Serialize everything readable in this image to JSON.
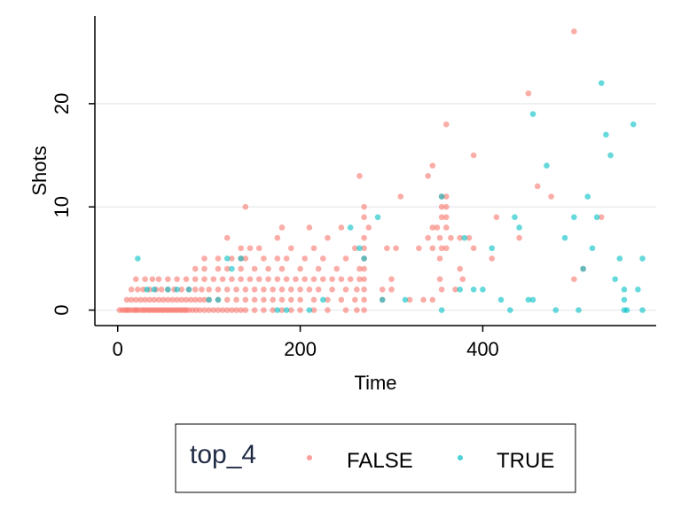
{
  "chart_data": {
    "type": "scatter",
    "xlabel": "Time",
    "ylabel": "Shots",
    "xlim": [
      -25,
      590
    ],
    "ylim": [
      -1.5,
      28.5
    ],
    "xticks": [
      0,
      200,
      400
    ],
    "yticks": [
      0,
      10,
      20
    ],
    "grid": "horizontal",
    "legend": {
      "title": "top_4",
      "placement": "bottom",
      "entries": [
        "FALSE",
        "TRUE"
      ]
    },
    "series": [
      {
        "name": "FALSE",
        "color": "#F8766D",
        "points": [
          [
            2,
            0
          ],
          [
            5,
            0
          ],
          [
            8,
            0
          ],
          [
            10,
            0
          ],
          [
            12,
            0
          ],
          [
            15,
            0
          ],
          [
            18,
            0
          ],
          [
            20,
            0
          ],
          [
            22,
            0
          ],
          [
            25,
            0
          ],
          [
            28,
            0
          ],
          [
            30,
            0
          ],
          [
            33,
            0
          ],
          [
            35,
            0
          ],
          [
            38,
            0
          ],
          [
            40,
            0
          ],
          [
            43,
            0
          ],
          [
            45,
            0
          ],
          [
            48,
            0
          ],
          [
            50,
            0
          ],
          [
            53,
            0
          ],
          [
            55,
            0
          ],
          [
            58,
            0
          ],
          [
            60,
            0
          ],
          [
            63,
            0
          ],
          [
            65,
            0
          ],
          [
            68,
            0
          ],
          [
            70,
            0
          ],
          [
            73,
            0
          ],
          [
            75,
            0
          ],
          [
            78,
            0
          ],
          [
            82,
            0
          ],
          [
            86,
            0
          ],
          [
            90,
            0
          ],
          [
            95,
            0
          ],
          [
            100,
            0
          ],
          [
            105,
            0
          ],
          [
            110,
            0
          ],
          [
            115,
            0
          ],
          [
            120,
            0
          ],
          [
            125,
            0
          ],
          [
            130,
            0
          ],
          [
            135,
            0
          ],
          [
            140,
            0
          ],
          [
            150,
            0
          ],
          [
            160,
            0
          ],
          [
            170,
            0
          ],
          [
            180,
            0
          ],
          [
            190,
            0
          ],
          [
            200,
            0
          ],
          [
            215,
            0
          ],
          [
            230,
            0
          ],
          [
            250,
            0
          ],
          [
            262,
            0
          ],
          [
            270,
            0
          ],
          [
            10,
            1
          ],
          [
            15,
            1
          ],
          [
            20,
            1
          ],
          [
            25,
            1
          ],
          [
            30,
            1
          ],
          [
            35,
            1
          ],
          [
            40,
            1
          ],
          [
            45,
            1
          ],
          [
            50,
            1
          ],
          [
            55,
            1
          ],
          [
            60,
            1
          ],
          [
            65,
            1
          ],
          [
            70,
            1
          ],
          [
            75,
            1
          ],
          [
            80,
            1
          ],
          [
            85,
            1
          ],
          [
            90,
            1
          ],
          [
            95,
            1
          ],
          [
            100,
            1
          ],
          [
            110,
            1
          ],
          [
            120,
            1
          ],
          [
            130,
            1
          ],
          [
            140,
            1
          ],
          [
            150,
            1
          ],
          [
            160,
            1
          ],
          [
            170,
            1
          ],
          [
            180,
            1
          ],
          [
            190,
            1
          ],
          [
            200,
            1
          ],
          [
            215,
            1
          ],
          [
            230,
            1
          ],
          [
            245,
            1
          ],
          [
            260,
            1
          ],
          [
            270,
            1
          ],
          [
            290,
            1
          ],
          [
            320,
            1
          ],
          [
            335,
            1
          ],
          [
            345,
            1
          ],
          [
            15,
            2
          ],
          [
            22,
            2
          ],
          [
            28,
            2
          ],
          [
            35,
            2
          ],
          [
            42,
            2
          ],
          [
            48,
            2
          ],
          [
            55,
            2
          ],
          [
            62,
            2
          ],
          [
            70,
            2
          ],
          [
            78,
            2
          ],
          [
            85,
            2
          ],
          [
            92,
            2
          ],
          [
            100,
            2
          ],
          [
            110,
            2
          ],
          [
            120,
            2
          ],
          [
            130,
            2
          ],
          [
            140,
            2
          ],
          [
            150,
            2
          ],
          [
            160,
            2
          ],
          [
            170,
            2
          ],
          [
            180,
            2
          ],
          [
            190,
            2
          ],
          [
            200,
            2
          ],
          [
            210,
            2
          ],
          [
            220,
            2
          ],
          [
            235,
            2
          ],
          [
            250,
            2
          ],
          [
            262,
            2
          ],
          [
            270,
            2
          ],
          [
            290,
            2
          ],
          [
            300,
            2
          ],
          [
            355,
            2
          ],
          [
            370,
            2
          ],
          [
            20,
            3
          ],
          [
            30,
            3
          ],
          [
            38,
            3
          ],
          [
            45,
            3
          ],
          [
            55,
            3
          ],
          [
            65,
            3
          ],
          [
            75,
            3
          ],
          [
            85,
            3
          ],
          [
            95,
            3
          ],
          [
            105,
            3
          ],
          [
            115,
            3
          ],
          [
            125,
            3
          ],
          [
            135,
            3
          ],
          [
            145,
            3
          ],
          [
            155,
            3
          ],
          [
            165,
            3
          ],
          [
            175,
            3
          ],
          [
            185,
            3
          ],
          [
            195,
            3
          ],
          [
            205,
            3
          ],
          [
            215,
            3
          ],
          [
            225,
            3
          ],
          [
            235,
            3
          ],
          [
            245,
            3
          ],
          [
            255,
            3
          ],
          [
            265,
            3
          ],
          [
            270,
            3
          ],
          [
            300,
            3
          ],
          [
            353,
            3
          ],
          [
            378,
            3
          ],
          [
            500,
            3
          ],
          [
            85,
            4
          ],
          [
            95,
            4
          ],
          [
            110,
            4
          ],
          [
            120,
            4
          ],
          [
            135,
            4
          ],
          [
            150,
            4
          ],
          [
            165,
            4
          ],
          [
            180,
            4
          ],
          [
            200,
            4
          ],
          [
            220,
            4
          ],
          [
            240,
            4
          ],
          [
            265,
            4
          ],
          [
            270,
            4
          ],
          [
            375,
            4
          ],
          [
            510,
            4
          ],
          [
            95,
            5
          ],
          [
            110,
            5
          ],
          [
            125,
            5
          ],
          [
            135,
            5
          ],
          [
            140,
            5
          ],
          [
            160,
            5
          ],
          [
            175,
            5
          ],
          [
            185,
            5
          ],
          [
            205,
            5
          ],
          [
            225,
            5
          ],
          [
            250,
            5
          ],
          [
            270,
            5
          ],
          [
            353,
            5
          ],
          [
            410,
            5
          ],
          [
            135,
            6
          ],
          [
            145,
            6
          ],
          [
            155,
            6
          ],
          [
            190,
            6
          ],
          [
            215,
            6
          ],
          [
            260,
            6
          ],
          [
            270,
            6
          ],
          [
            295,
            6
          ],
          [
            305,
            6
          ],
          [
            330,
            6
          ],
          [
            345,
            6
          ],
          [
            355,
            6
          ],
          [
            360,
            6
          ],
          [
            390,
            6
          ],
          [
            120,
            7
          ],
          [
            175,
            7
          ],
          [
            230,
            7
          ],
          [
            270,
            7
          ],
          [
            340,
            7
          ],
          [
            353,
            7
          ],
          [
            365,
            7
          ],
          [
            375,
            7
          ],
          [
            385,
            7
          ],
          [
            440,
            7
          ],
          [
            180,
            8
          ],
          [
            210,
            8
          ],
          [
            245,
            8
          ],
          [
            275,
            8
          ],
          [
            345,
            8
          ],
          [
            350,
            8
          ],
          [
            360,
            8
          ],
          [
            270,
            9
          ],
          [
            355,
            9
          ],
          [
            360,
            9
          ],
          [
            415,
            9
          ],
          [
            530,
            9
          ],
          [
            140,
            10
          ],
          [
            270,
            10
          ],
          [
            355,
            10
          ],
          [
            360,
            10
          ],
          [
            310,
            11
          ],
          [
            355,
            11
          ],
          [
            360,
            11
          ],
          [
            475,
            11
          ],
          [
            460,
            12
          ],
          [
            265,
            13
          ],
          [
            340,
            13
          ],
          [
            345,
            14
          ],
          [
            390,
            15
          ],
          [
            360,
            18
          ],
          [
            450,
            21
          ],
          [
            500,
            27
          ]
        ]
      },
      {
        "name": "TRUE",
        "color": "#00BFC4",
        "points": [
          [
            22,
            5
          ],
          [
            32,
            2
          ],
          [
            40,
            2
          ],
          [
            55,
            2
          ],
          [
            65,
            2
          ],
          [
            78,
            2
          ],
          [
            100,
            1
          ],
          [
            110,
            1
          ],
          [
            120,
            5
          ],
          [
            125,
            4
          ],
          [
            135,
            5
          ],
          [
            175,
            0
          ],
          [
            185,
            0
          ],
          [
            210,
            0
          ],
          [
            225,
            1
          ],
          [
            255,
            8
          ],
          [
            265,
            6
          ],
          [
            270,
            5
          ],
          [
            285,
            9
          ],
          [
            290,
            1
          ],
          [
            315,
            1
          ],
          [
            355,
            0
          ],
          [
            355,
            11
          ],
          [
            375,
            2
          ],
          [
            380,
            7
          ],
          [
            390,
            2
          ],
          [
            400,
            2
          ],
          [
            410,
            6
          ],
          [
            420,
            1
          ],
          [
            430,
            0
          ],
          [
            435,
            9
          ],
          [
            440,
            8
          ],
          [
            450,
            1
          ],
          [
            455,
            1
          ],
          [
            470,
            14
          ],
          [
            455,
            19
          ],
          [
            480,
            0
          ],
          [
            490,
            7
          ],
          [
            500,
            9
          ],
          [
            505,
            0
          ],
          [
            510,
            4
          ],
          [
            515,
            11
          ],
          [
            520,
            6
          ],
          [
            525,
            9
          ],
          [
            530,
            22
          ],
          [
            535,
            17
          ],
          [
            540,
            15
          ],
          [
            545,
            3
          ],
          [
            550,
            5
          ],
          [
            555,
            2
          ],
          [
            555,
            1
          ],
          [
            555,
            0
          ],
          [
            558,
            0
          ],
          [
            565,
            18
          ],
          [
            570,
            2
          ],
          [
            575,
            5
          ],
          [
            575,
            0
          ]
        ]
      }
    ]
  }
}
